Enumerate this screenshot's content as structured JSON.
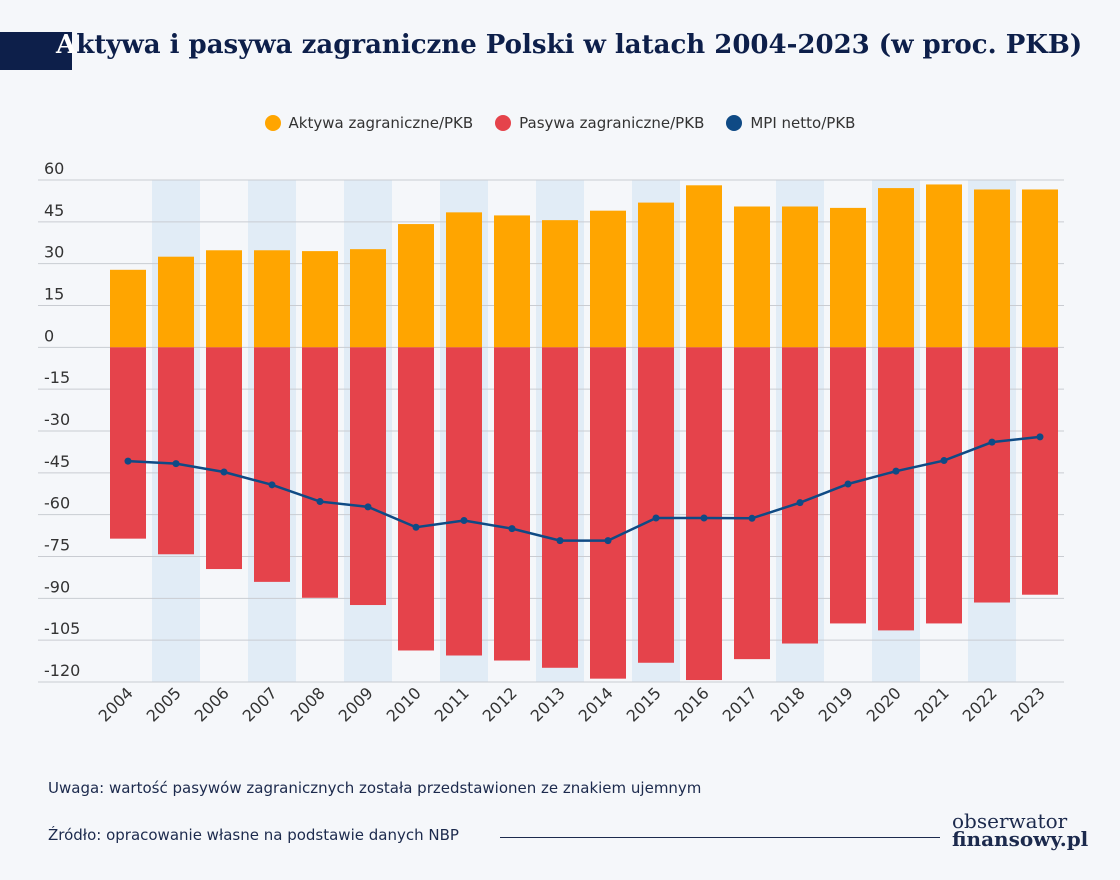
{
  "header": {
    "title_first": "A",
    "title_rest": "ktywa i pasywa zagraniczne Polski w latach 2004-2023 (w proc. PKB)"
  },
  "chart_data": {
    "type": "bar",
    "title": "Aktywa i pasywa zagraniczne Polski w latach 2004-2023 (w proc. PKB)",
    "categories": [
      "2004",
      "2005",
      "2006",
      "2007",
      "2008",
      "2009",
      "2010",
      "2011",
      "2012",
      "2013",
      "2014",
      "2015",
      "2016",
      "2017",
      "2018",
      "2019",
      "2020",
      "2021",
      "2022",
      "2023"
    ],
    "series": [
      {
        "name": "Aktywa zagraniczne/PKB",
        "kind": "bar",
        "color": "#ffa500",
        "values": [
          27.8,
          32.5,
          34.8,
          34.8,
          34.5,
          35.2,
          44.2,
          48.4,
          47.3,
          45.6,
          49.0,
          51.9,
          58.1,
          50.5,
          50.5,
          50.0,
          57.1,
          58.4,
          56.6,
          56.6
        ]
      },
      {
        "name": "Pasywa zagraniczne/PKB",
        "kind": "bar",
        "color": "#e5434b",
        "values": [
          -68.6,
          -74.2,
          -79.5,
          -84.1,
          -89.8,
          -92.4,
          -108.7,
          -110.5,
          -112.3,
          -114.9,
          -118.8,
          -113.1,
          -119.3,
          -111.8,
          -106.2,
          -99.0,
          -101.5,
          -99.0,
          -91.5,
          -88.7
        ]
      },
      {
        "name": "MPI netto/PKB",
        "kind": "line",
        "color": "#0f4a85",
        "values": [
          -40.8,
          -41.7,
          -44.7,
          -49.3,
          -55.3,
          -57.2,
          -64.5,
          -62.1,
          -65.0,
          -69.3,
          -69.3,
          -61.2,
          -61.2,
          -61.3,
          -55.7,
          -49.0,
          -44.4,
          -40.6,
          -34.0,
          -32.1
        ]
      }
    ],
    "ylim": [
      -120,
      60
    ],
    "yticks": [
      60,
      45,
      30,
      15,
      0,
      -15,
      -30,
      -45,
      -60,
      -75,
      -90,
      -105,
      -120
    ],
    "xlabel": "",
    "ylabel": "",
    "legend": "top-center",
    "shaded_years": [
      "2005",
      "2007",
      "2009",
      "2011",
      "2013",
      "2015",
      "2018",
      "2020",
      "2022"
    ],
    "colors": {
      "grid": "#c9ccd2",
      "shade": "#e1ecf6",
      "axis_text": "#333333"
    }
  },
  "footer": {
    "note": "Uwaga: wartość pasywów zagranicznych została przedstawionen ze znakiem ujemnym",
    "source": "Źródło: opracowanie własne na podstawie danych NBP",
    "logo_line1": "obserwator",
    "logo_line2": "finansowy.pl"
  }
}
